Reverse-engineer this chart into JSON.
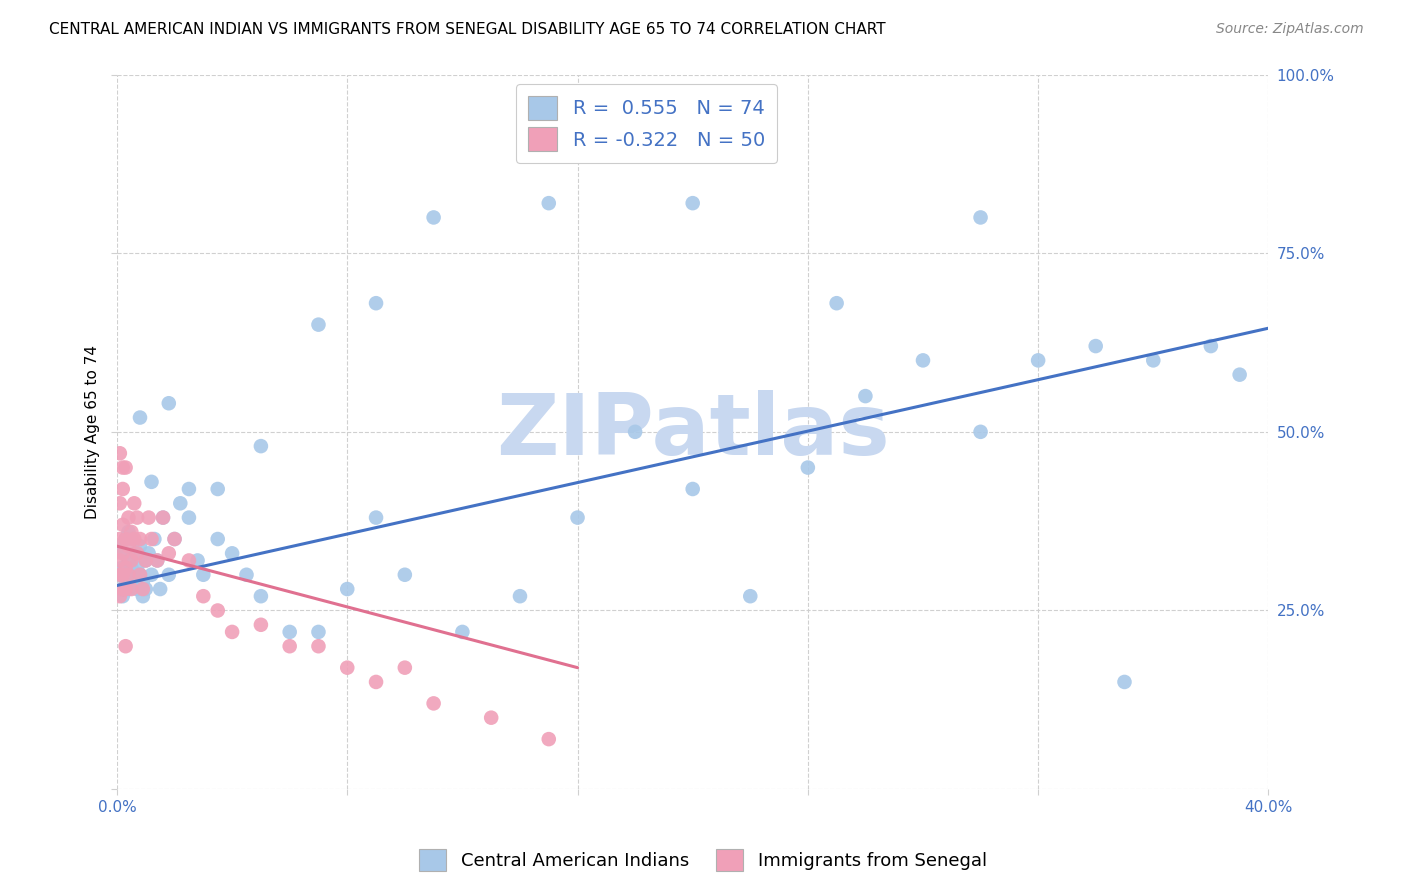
{
  "title": "CENTRAL AMERICAN INDIAN VS IMMIGRANTS FROM SENEGAL DISABILITY AGE 65 TO 74 CORRELATION CHART",
  "source": "Source: ZipAtlas.com",
  "ylabel": "Disability Age 65 to 74",
  "xlim": [
    0.0,
    0.4
  ],
  "ylim": [
    0.0,
    1.0
  ],
  "background_color": "#ffffff",
  "grid_color": "#d0d0d0",
  "blue_color": "#a8c8e8",
  "pink_color": "#f0a0b8",
  "blue_line_color": "#4472c4",
  "pink_line_color": "#e07090",
  "r_blue": 0.555,
  "n_blue": 74,
  "r_pink": -0.322,
  "n_pink": 50,
  "watermark": "ZIPatlas",
  "watermark_color": "#c8d8f0",
  "title_fontsize": 11,
  "axis_label_fontsize": 11,
  "tick_fontsize": 11,
  "legend_fontsize": 14,
  "source_fontsize": 10,
  "blue_x": [
    0.001,
    0.001,
    0.002,
    0.002,
    0.002,
    0.003,
    0.003,
    0.003,
    0.004,
    0.004,
    0.004,
    0.005,
    0.005,
    0.005,
    0.006,
    0.006,
    0.007,
    0.007,
    0.008,
    0.008,
    0.009,
    0.009,
    0.01,
    0.01,
    0.011,
    0.012,
    0.013,
    0.014,
    0.015,
    0.016,
    0.018,
    0.02,
    0.022,
    0.025,
    0.028,
    0.03,
    0.035,
    0.04,
    0.045,
    0.05,
    0.06,
    0.07,
    0.08,
    0.09,
    0.1,
    0.12,
    0.14,
    0.16,
    0.18,
    0.2,
    0.22,
    0.24,
    0.26,
    0.28,
    0.3,
    0.32,
    0.34,
    0.36,
    0.38,
    0.39,
    0.008,
    0.012,
    0.018,
    0.025,
    0.035,
    0.05,
    0.07,
    0.09,
    0.11,
    0.15,
    0.2,
    0.25,
    0.3,
    0.35
  ],
  "blue_y": [
    0.3,
    0.34,
    0.28,
    0.31,
    0.27,
    0.33,
    0.29,
    0.35,
    0.28,
    0.32,
    0.36,
    0.29,
    0.31,
    0.35,
    0.3,
    0.33,
    0.28,
    0.31,
    0.3,
    0.34,
    0.27,
    0.29,
    0.32,
    0.28,
    0.33,
    0.3,
    0.35,
    0.32,
    0.28,
    0.38,
    0.3,
    0.35,
    0.4,
    0.38,
    0.32,
    0.3,
    0.35,
    0.33,
    0.3,
    0.27,
    0.22,
    0.22,
    0.28,
    0.38,
    0.3,
    0.22,
    0.27,
    0.38,
    0.5,
    0.42,
    0.27,
    0.45,
    0.55,
    0.6,
    0.5,
    0.6,
    0.62,
    0.6,
    0.62,
    0.58,
    0.52,
    0.43,
    0.54,
    0.42,
    0.42,
    0.48,
    0.65,
    0.68,
    0.8,
    0.82,
    0.82,
    0.68,
    0.8,
    0.15
  ],
  "pink_x": [
    0.001,
    0.001,
    0.001,
    0.001,
    0.001,
    0.002,
    0.002,
    0.002,
    0.002,
    0.002,
    0.003,
    0.003,
    0.003,
    0.003,
    0.004,
    0.004,
    0.004,
    0.005,
    0.005,
    0.005,
    0.006,
    0.006,
    0.007,
    0.007,
    0.008,
    0.008,
    0.009,
    0.01,
    0.011,
    0.012,
    0.014,
    0.016,
    0.018,
    0.02,
    0.025,
    0.03,
    0.035,
    0.04,
    0.05,
    0.06,
    0.07,
    0.08,
    0.09,
    0.1,
    0.11,
    0.13,
    0.15,
    0.001,
    0.002,
    0.003
  ],
  "pink_y": [
    0.3,
    0.35,
    0.27,
    0.32,
    0.4,
    0.28,
    0.33,
    0.37,
    0.42,
    0.3,
    0.35,
    0.28,
    0.31,
    0.45,
    0.3,
    0.34,
    0.38,
    0.32,
    0.36,
    0.28,
    0.35,
    0.4,
    0.33,
    0.38,
    0.3,
    0.35,
    0.28,
    0.32,
    0.38,
    0.35,
    0.32,
    0.38,
    0.33,
    0.35,
    0.32,
    0.27,
    0.25,
    0.22,
    0.23,
    0.2,
    0.2,
    0.17,
    0.15,
    0.17,
    0.12,
    0.1,
    0.07,
    0.47,
    0.45,
    0.2
  ],
  "blue_line_x": [
    0.0,
    0.4
  ],
  "blue_line_y": [
    0.285,
    0.645
  ],
  "pink_line_x": [
    0.0,
    0.16
  ],
  "pink_line_y": [
    0.34,
    0.17
  ]
}
